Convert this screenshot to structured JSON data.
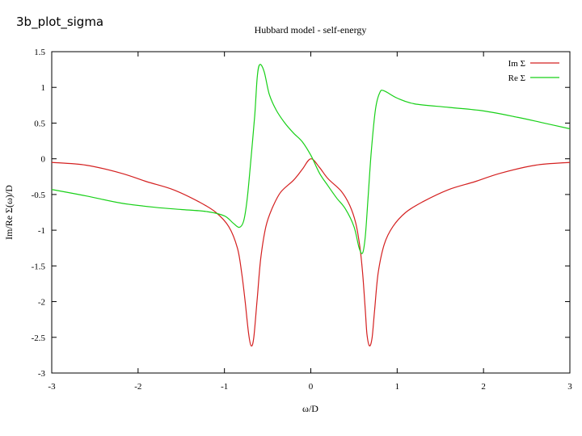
{
  "slide": {
    "title": "3b_plot_sigma"
  },
  "colors": {
    "im_series": "#d42020",
    "re_series": "#18d018",
    "axis": "#000000",
    "background": "#ffffff"
  },
  "chart_data": {
    "type": "line",
    "title": "Hubbard model - self-energy",
    "xlabel": "ω/D",
    "ylabel": "Im/Re Σ(ω)/D",
    "xlim": [
      -3,
      3
    ],
    "ylim": [
      -3,
      1.5
    ],
    "x_ticks": [
      -3,
      -2,
      -1,
      0,
      1,
      2,
      3
    ],
    "y_ticks": [
      1.5,
      1,
      0.5,
      0,
      -0.5,
      -1,
      -1.5,
      -2,
      -2.5,
      -3
    ],
    "x_tick_labels": [
      "-3",
      "-2",
      "-1",
      "0",
      "1",
      "2",
      "3"
    ],
    "y_tick_labels": [
      "1.5",
      "1",
      "0.5",
      "0",
      "-0.5",
      "-1",
      "-1.5",
      "-2",
      "-2.5",
      "-3"
    ],
    "grid": false,
    "legend_position": "top-right",
    "series": [
      {
        "name": "Im Σ",
        "color": "#d42020",
        "points": [
          [
            -3.0,
            -0.05
          ],
          [
            -2.6,
            -0.09
          ],
          [
            -2.2,
            -0.2
          ],
          [
            -1.9,
            -0.32
          ],
          [
            -1.6,
            -0.43
          ],
          [
            -1.3,
            -0.6
          ],
          [
            -1.1,
            -0.75
          ],
          [
            -0.95,
            -0.95
          ],
          [
            -0.85,
            -1.25
          ],
          [
            -0.8,
            -1.6
          ],
          [
            -0.76,
            -2.0
          ],
          [
            -0.72,
            -2.45
          ],
          [
            -0.69,
            -2.62
          ],
          [
            -0.66,
            -2.5
          ],
          [
            -0.62,
            -1.95
          ],
          [
            -0.58,
            -1.4
          ],
          [
            -0.52,
            -0.95
          ],
          [
            -0.45,
            -0.7
          ],
          [
            -0.35,
            -0.47
          ],
          [
            -0.2,
            -0.3
          ],
          [
            -0.1,
            -0.15
          ],
          [
            0.0,
            0.0
          ],
          [
            0.1,
            -0.12
          ],
          [
            0.2,
            -0.28
          ],
          [
            0.35,
            -0.45
          ],
          [
            0.45,
            -0.65
          ],
          [
            0.52,
            -0.9
          ],
          [
            0.57,
            -1.25
          ],
          [
            0.6,
            -1.6
          ],
          [
            0.63,
            -2.1
          ],
          [
            0.65,
            -2.45
          ],
          [
            0.68,
            -2.62
          ],
          [
            0.71,
            -2.5
          ],
          [
            0.74,
            -2.1
          ],
          [
            0.78,
            -1.6
          ],
          [
            0.85,
            -1.2
          ],
          [
            0.95,
            -0.95
          ],
          [
            1.1,
            -0.75
          ],
          [
            1.3,
            -0.6
          ],
          [
            1.6,
            -0.43
          ],
          [
            1.9,
            -0.32
          ],
          [
            2.2,
            -0.2
          ],
          [
            2.6,
            -0.09
          ],
          [
            3.0,
            -0.05
          ]
        ]
      },
      {
        "name": "Re Σ",
        "color": "#18d018",
        "points": [
          [
            -3.0,
            -0.43
          ],
          [
            -2.6,
            -0.52
          ],
          [
            -2.2,
            -0.62
          ],
          [
            -1.8,
            -0.68
          ],
          [
            -1.5,
            -0.71
          ],
          [
            -1.2,
            -0.74
          ],
          [
            -1.0,
            -0.8
          ],
          [
            -0.9,
            -0.9
          ],
          [
            -0.83,
            -0.96
          ],
          [
            -0.78,
            -0.88
          ],
          [
            -0.74,
            -0.6
          ],
          [
            -0.7,
            -0.1
          ],
          [
            -0.65,
            0.6
          ],
          [
            -0.62,
            1.15
          ],
          [
            -0.59,
            1.32
          ],
          [
            -0.54,
            1.22
          ],
          [
            -0.48,
            0.9
          ],
          [
            -0.4,
            0.68
          ],
          [
            -0.3,
            0.5
          ],
          [
            -0.2,
            0.36
          ],
          [
            -0.1,
            0.24
          ],
          [
            0.0,
            0.05
          ],
          [
            0.1,
            -0.2
          ],
          [
            0.2,
            -0.38
          ],
          [
            0.3,
            -0.55
          ],
          [
            0.4,
            -0.7
          ],
          [
            0.5,
            -0.95
          ],
          [
            0.56,
            -1.25
          ],
          [
            0.6,
            -1.32
          ],
          [
            0.63,
            -1.1
          ],
          [
            0.66,
            -0.6
          ],
          [
            0.7,
            0.1
          ],
          [
            0.75,
            0.7
          ],
          [
            0.8,
            0.93
          ],
          [
            0.85,
            0.95
          ],
          [
            1.0,
            0.85
          ],
          [
            1.2,
            0.77
          ],
          [
            1.6,
            0.72
          ],
          [
            2.0,
            0.67
          ],
          [
            2.4,
            0.58
          ],
          [
            2.7,
            0.5
          ],
          [
            3.0,
            0.42
          ]
        ]
      }
    ]
  }
}
